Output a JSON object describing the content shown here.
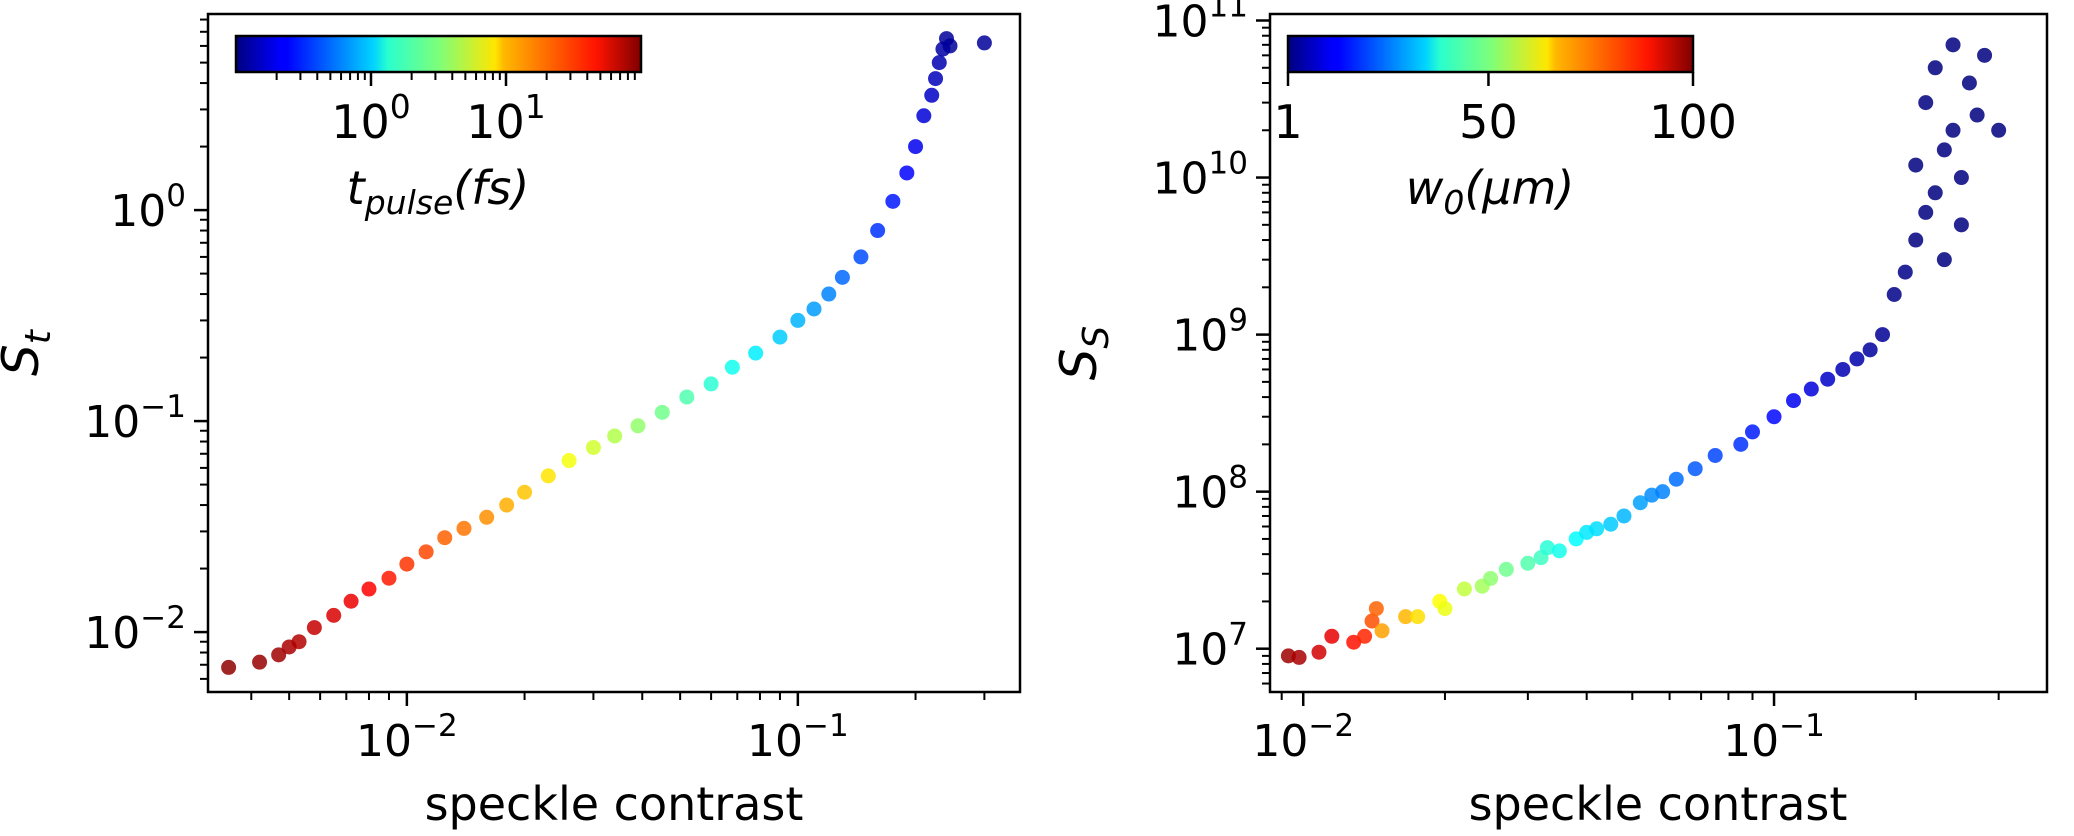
{
  "chart_data": [
    {
      "type": "scatter",
      "xlabel": "speckle contrast",
      "ylabel": "S",
      "ylabel_sub": "t",
      "xscale": "log",
      "yscale": "log",
      "xlim": [
        0.0031,
        0.37
      ],
      "ylim": [
        0.0052,
        8.5
      ],
      "xticks": [
        {
          "value": 0.01,
          "base": "10",
          "exp": "−2"
        },
        {
          "value": 0.1,
          "base": "10",
          "exp": "−1"
        }
      ],
      "yticks": [
        {
          "value": 0.01,
          "base": "10",
          "exp": "−2"
        },
        {
          "value": 0.1,
          "base": "10",
          "exp": "−1"
        },
        {
          "value": 1,
          "base": "10",
          "exp": "0"
        }
      ],
      "colorbar": {
        "label_main": "t",
        "label_sub": "pulse",
        "label_unit": "(fs)",
        "scale": "log",
        "range": [
          0.1,
          100
        ],
        "ticks": [
          {
            "value": 1,
            "base": "10",
            "exp": "0"
          },
          {
            "value": 10,
            "base": "10",
            "exp": "1"
          }
        ],
        "colormap": "jet",
        "placement": "top-left"
      },
      "series": [
        {
          "x": [
            0.0035,
            0.0042,
            0.0047,
            0.005,
            0.0053,
            0.0058,
            0.0065,
            0.0072,
            0.008,
            0.009,
            0.01,
            0.0112,
            0.0125,
            0.014,
            0.016,
            0.018,
            0.02,
            0.023,
            0.026,
            0.03,
            0.034,
            0.039,
            0.045,
            0.052,
            0.06,
            0.068,
            0.078,
            0.09,
            0.1,
            0.11,
            0.12,
            0.13,
            0.145,
            0.16,
            0.175,
            0.19,
            0.2,
            0.21,
            0.22,
            0.225,
            0.23,
            0.235,
            0.24,
            0.245,
            0.3
          ],
          "y": [
            0.0068,
            0.0072,
            0.0078,
            0.0085,
            0.009,
            0.0105,
            0.012,
            0.014,
            0.016,
            0.018,
            0.021,
            0.024,
            0.028,
            0.031,
            0.035,
            0.04,
            0.046,
            0.055,
            0.065,
            0.075,
            0.085,
            0.095,
            0.11,
            0.13,
            0.15,
            0.18,
            0.21,
            0.25,
            0.3,
            0.34,
            0.4,
            0.48,
            0.6,
            0.8,
            1.1,
            1.5,
            2.0,
            2.8,
            3.5,
            4.2,
            5.0,
            5.8,
            6.5,
            6.0,
            6.2
          ],
          "c": [
            90,
            85,
            80,
            75,
            70,
            62,
            55,
            48,
            42,
            36,
            30,
            26,
            22,
            19,
            16,
            13,
            11,
            9,
            7,
            5.5,
            4.5,
            3.6,
            2.9,
            2.3,
            1.8,
            1.5,
            1.2,
            0.95,
            0.8,
            0.68,
            0.58,
            0.48,
            0.4,
            0.33,
            0.28,
            0.24,
            0.21,
            0.18,
            0.16,
            0.15,
            0.14,
            0.13,
            0.12,
            0.12,
            0.12
          ]
        }
      ]
    },
    {
      "type": "scatter",
      "xlabel": "speckle contrast",
      "ylabel": "S",
      "ylabel_sub": "S",
      "xscale": "log",
      "yscale": "log",
      "xlim": [
        0.0085,
        0.38
      ],
      "ylim": [
        5300000,
        110000000000
      ],
      "xticks": [
        {
          "value": 0.01,
          "base": "10",
          "exp": "−2"
        },
        {
          "value": 0.1,
          "base": "10",
          "exp": "−1"
        }
      ],
      "yticks": [
        {
          "value": 10000000,
          "base": "10",
          "exp": "7"
        },
        {
          "value": 100000000,
          "base": "10",
          "exp": "8"
        },
        {
          "value": 1000000000,
          "base": "10",
          "exp": "9"
        },
        {
          "value": 10000000000,
          "base": "10",
          "exp": "10"
        },
        {
          "value": 100000000000,
          "base": "10",
          "exp": "11"
        }
      ],
      "colorbar": {
        "label_main": "w",
        "label_sub": "0",
        "label_unit": "(μm)",
        "scale": "linear",
        "range": [
          1,
          100
        ],
        "ticks": [
          {
            "value": 1,
            "text": "1"
          },
          {
            "value": 50,
            "text": "50"
          },
          {
            "value": 100,
            "text": "100"
          }
        ],
        "colormap": "jet",
        "placement": "top-left"
      },
      "series": [
        {
          "x": [
            0.0093,
            0.0098,
            0.0108,
            0.0115,
            0.0128,
            0.0135,
            0.014,
            0.0143,
            0.0147,
            0.0165,
            0.0175,
            0.0195,
            0.02,
            0.022,
            0.024,
            0.025,
            0.027,
            0.03,
            0.032,
            0.033,
            0.035,
            0.038,
            0.04,
            0.042,
            0.045,
            0.048,
            0.052,
            0.055,
            0.058,
            0.062,
            0.068,
            0.075,
            0.085,
            0.09,
            0.1,
            0.11,
            0.12,
            0.13,
            0.14,
            0.15,
            0.16,
            0.17,
            0.18,
            0.19,
            0.2,
            0.2,
            0.21,
            0.21,
            0.22,
            0.22,
            0.23,
            0.23,
            0.24,
            0.24,
            0.25,
            0.25,
            0.26,
            0.27,
            0.28,
            0.3
          ],
          "y": [
            9000000,
            8800000,
            9500000,
            12000000,
            11000000,
            12000000,
            15000000,
            18000000,
            13000000,
            16000000,
            16000000,
            20000000,
            18000000,
            24000000,
            25000000,
            28000000,
            32000000,
            35000000,
            38000000,
            44000000,
            42000000,
            50000000,
            55000000,
            58000000,
            62000000,
            70000000,
            85000000,
            95000000,
            100000000,
            120000000,
            140000000,
            170000000,
            200000000,
            240000000,
            300000000,
            380000000,
            450000000,
            520000000,
            600000000,
            700000000,
            800000000,
            1000000000,
            1800000000,
            2500000000,
            4000000000,
            12000000000,
            6000000000,
            30000000000,
            8000000000,
            50000000000,
            3000000000,
            15000000000,
            70000000000,
            20000000000,
            10000000000,
            5000000000,
            40000000000,
            25000000000,
            60000000000,
            20000000000
          ],
          "c": [
            97,
            96,
            92,
            90,
            86,
            84,
            80,
            78,
            72,
            70,
            66,
            63,
            61,
            57,
            54,
            52,
            49,
            46,
            44,
            42,
            40,
            38,
            36,
            35,
            33,
            31,
            29,
            27,
            26,
            24,
            22,
            20,
            18,
            16,
            14,
            12,
            10,
            8,
            6,
            5,
            4,
            3,
            2,
            2,
            1,
            1,
            1,
            1,
            1,
            1,
            1,
            1,
            1,
            1,
            1,
            1,
            1,
            1,
            1,
            1
          ]
        }
      ]
    }
  ]
}
